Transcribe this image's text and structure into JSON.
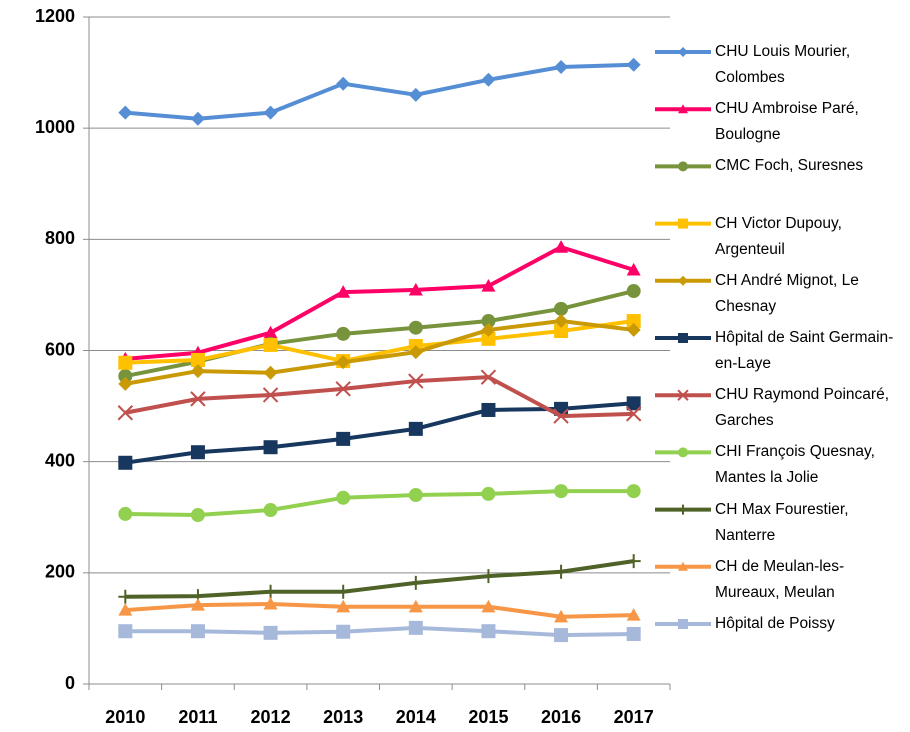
{
  "chart_data": {
    "type": "line",
    "categories": [
      "2010",
      "2011",
      "2012",
      "2013",
      "2014",
      "2015",
      "2016",
      "2017"
    ],
    "ylim": [
      0,
      1200
    ],
    "yticks": [
      0,
      200,
      400,
      600,
      800,
      1000,
      1200
    ],
    "grid": true,
    "legend": "right",
    "series": [
      {
        "name": "CHU Louis Mourier, Colombes",
        "color": "#558ed5",
        "marker": "diamond",
        "values": [
          1028,
          1017,
          1028,
          1080,
          1060,
          1087,
          1110,
          1114
        ]
      },
      {
        "name": "CHU Ambroise Paré, Boulogne",
        "color": "#ff0066",
        "marker": "triangle",
        "values": [
          585,
          596,
          632,
          705,
          709,
          716,
          786,
          745
        ]
      },
      {
        "name": "CMC Foch, Suresnes",
        "color": "#77933c",
        "marker": "circle",
        "values": [
          554,
          580,
          612,
          630,
          641,
          653,
          675,
          707
        ]
      },
      {
        "name": "CH Victor Dupouy, Argenteuil",
        "color": "#ffc000",
        "marker": "square",
        "values": [
          578,
          583,
          610,
          581,
          608,
          621,
          635,
          653
        ]
      },
      {
        "name": "CH André Mignot, Le Chesnay",
        "color": "#c99a06",
        "marker": "diamond",
        "values": [
          540,
          563,
          560,
          579,
          597,
          637,
          653,
          637
        ]
      },
      {
        "name": "Hôpital de Saint Germain-en-Laye",
        "color": "#17375e",
        "marker": "square",
        "values": [
          398,
          417,
          426,
          441,
          459,
          493,
          495,
          505
        ]
      },
      {
        "name": "CHU Raymond Poincaré, Garches",
        "color": "#c0504d",
        "marker": "x",
        "values": [
          488,
          513,
          520,
          531,
          545,
          552,
          482,
          486
        ]
      },
      {
        "name": "CHI François Quesnay, Mantes la Jolie",
        "color": "#92d050",
        "marker": "circle",
        "values": [
          306,
          304,
          313,
          335,
          340,
          342,
          347,
          347
        ]
      },
      {
        "name": "CH Max Fourestier, Nanterre",
        "color": "#4f6228",
        "marker": "plus",
        "values": [
          157,
          158,
          166,
          166,
          182,
          194,
          202,
          221
        ]
      },
      {
        "name": "CH de Meulan-les-Mureaux, Meulan",
        "color": "#f79646",
        "marker": "triangle",
        "values": [
          133,
          142,
          144,
          139,
          139,
          139,
          121,
          124
        ]
      },
      {
        "name": "Hôpital de Poissy",
        "color": "#a6b9db",
        "marker": "square",
        "values": [
          95,
          95,
          92,
          94,
          101,
          95,
          88,
          90
        ]
      }
    ]
  }
}
